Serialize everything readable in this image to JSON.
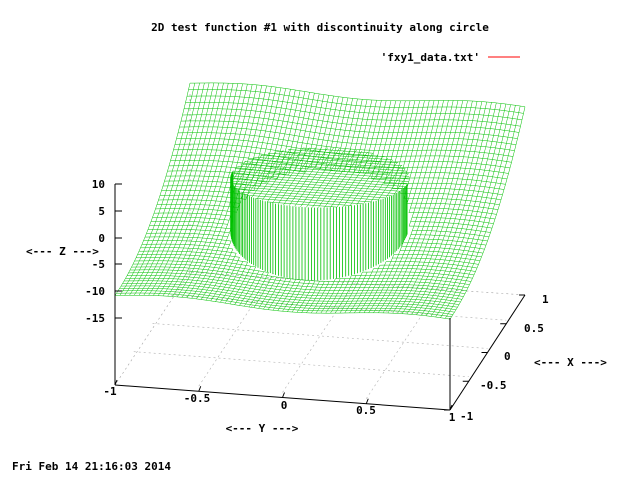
{
  "chart_data": {
    "type": "surface",
    "title": "2D test function #1 with discontinuity along circle",
    "legend": {
      "label": "'fxy1_data.txt'",
      "color": "#ff0000",
      "placement": "top-right"
    },
    "xlabel": "<--- X --->",
    "ylabel": "<--- Y --->",
    "zlabel": "<--- Z --->",
    "x_ticks": [
      "1",
      "0.5",
      "0",
      "-0.5",
      "-1"
    ],
    "y_ticks": [
      "-1",
      "-0.5",
      "0",
      "0.5",
      "1"
    ],
    "z_ticks": [
      "10",
      "5",
      "0",
      "-5",
      "-10",
      "-15"
    ],
    "xlim": [
      -1,
      1
    ],
    "ylim": [
      -1,
      1
    ],
    "zlim": [
      -15,
      10
    ],
    "grid": true,
    "surface_color": "#00c000",
    "surface": "low outer plateau with a raised disk of constant height inside a circle of radius about 0.5, discontinuous along the circle"
  },
  "timestamp": "Fri Feb 14 21:16:03 2014"
}
